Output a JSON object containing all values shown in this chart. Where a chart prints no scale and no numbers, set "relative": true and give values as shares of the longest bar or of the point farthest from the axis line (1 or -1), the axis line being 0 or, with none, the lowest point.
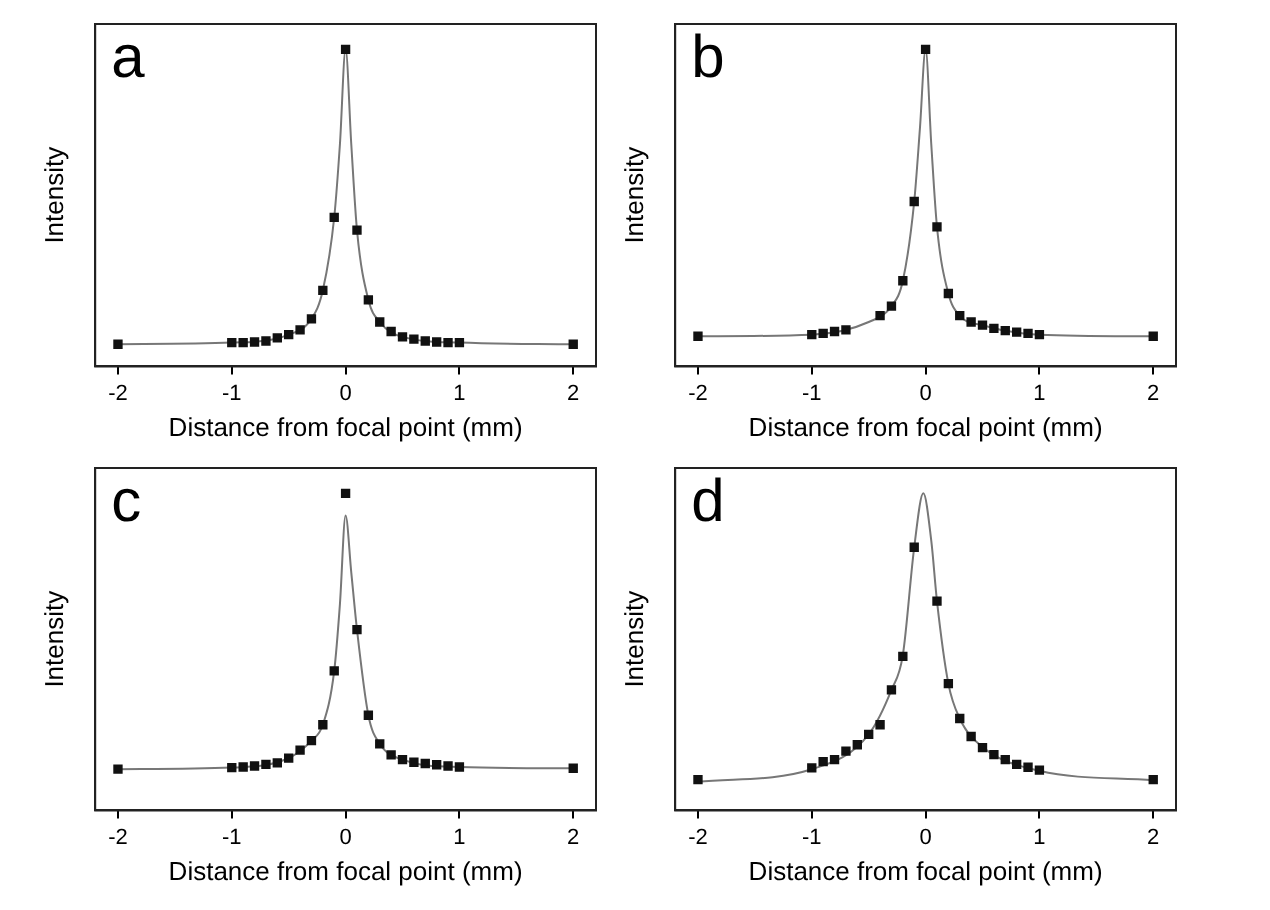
{
  "chart_data": [
    {
      "type": "scatter",
      "title": "a",
      "xlabel": "Distance from focal point (mm)",
      "ylabel": "Intensity",
      "relative": true,
      "xlim": [
        -2.2,
        2.2
      ],
      "xticks": [
        -2,
        -1,
        0,
        1,
        2
      ],
      "grid": false,
      "legend": false,
      "series": [
        {
          "type": "scatter",
          "marker": "square",
          "color": "#111111",
          "x": [
            -2,
            -1,
            -0.9,
            -0.8,
            -0.7,
            -0.6,
            -0.5,
            -0.4,
            -0.3,
            -0.2,
            -0.1,
            0,
            0.1,
            0.2,
            0.3,
            0.4,
            0.5,
            0.6,
            0.7,
            0.8,
            0.9,
            1,
            2
          ],
          "values": [
            0.07,
            0.075,
            0.075,
            0.077,
            0.08,
            0.09,
            0.1,
            0.115,
            0.15,
            0.24,
            0.47,
            1.0,
            0.43,
            0.21,
            0.14,
            0.11,
            0.093,
            0.086,
            0.08,
            0.077,
            0.075,
            0.075,
            0.07
          ]
        },
        {
          "type": "line",
          "marker": "none",
          "color": "#777777",
          "x": [
            -2,
            -1,
            -0.5,
            -0.3,
            -0.2,
            -0.1,
            -0.05,
            0,
            0.05,
            0.1,
            0.2,
            0.3,
            0.5,
            1,
            2
          ],
          "values": [
            0.07,
            0.075,
            0.1,
            0.15,
            0.24,
            0.47,
            0.7,
            1.0,
            0.7,
            0.43,
            0.21,
            0.14,
            0.093,
            0.075,
            0.07
          ]
        }
      ]
    },
    {
      "type": "scatter",
      "title": "b",
      "xlabel": "Distance from focal point (mm)",
      "ylabel": "Intensity",
      "relative": true,
      "xlim": [
        -2.2,
        2.2
      ],
      "xticks": [
        -2,
        -1,
        0,
        1,
        2
      ],
      "grid": false,
      "legend": false,
      "series": [
        {
          "type": "scatter",
          "marker": "square",
          "color": "#111111",
          "x": [
            -2,
            -1,
            -0.9,
            -0.8,
            -0.7,
            -0.4,
            -0.3,
            -0.2,
            -0.1,
            0,
            0.1,
            0.2,
            0.3,
            0.4,
            0.5,
            0.6,
            0.7,
            0.8,
            0.9,
            1,
            2
          ],
          "values": [
            0.095,
            0.1,
            0.104,
            0.11,
            0.115,
            0.16,
            0.19,
            0.27,
            0.52,
            1.0,
            0.44,
            0.23,
            0.16,
            0.14,
            0.13,
            0.12,
            0.113,
            0.108,
            0.104,
            0.1,
            0.095
          ]
        },
        {
          "type": "line",
          "marker": "none",
          "color": "#777777",
          "x": [
            -2,
            -1,
            -0.5,
            -0.3,
            -0.2,
            -0.1,
            -0.05,
            0,
            0.05,
            0.1,
            0.2,
            0.3,
            0.5,
            1,
            2
          ],
          "values": [
            0.095,
            0.1,
            0.14,
            0.19,
            0.27,
            0.52,
            0.75,
            1.0,
            0.7,
            0.44,
            0.23,
            0.16,
            0.13,
            0.1,
            0.095
          ]
        }
      ]
    },
    {
      "type": "scatter",
      "title": "c",
      "xlabel": "Distance from focal point (mm)",
      "ylabel": "Intensity",
      "relative": true,
      "xlim": [
        -2.2,
        2.2
      ],
      "xticks": [
        -2,
        -1,
        0,
        1,
        2
      ],
      "grid": false,
      "legend": false,
      "series": [
        {
          "type": "scatter",
          "marker": "square",
          "color": "#111111",
          "x": [
            -2,
            -1,
            -0.9,
            -0.8,
            -0.7,
            -0.6,
            -0.5,
            -0.4,
            -0.3,
            -0.2,
            -0.1,
            0,
            0.1,
            0.2,
            0.3,
            0.4,
            0.5,
            0.6,
            0.7,
            0.8,
            0.9,
            1,
            2
          ],
          "values": [
            0.13,
            0.135,
            0.137,
            0.14,
            0.145,
            0.15,
            0.165,
            0.19,
            0.22,
            0.27,
            0.44,
            1.0,
            0.57,
            0.3,
            0.21,
            0.175,
            0.16,
            0.152,
            0.148,
            0.144,
            0.14,
            0.137,
            0.133
          ]
        },
        {
          "type": "line",
          "marker": "none",
          "color": "#777777",
          "x": [
            -2,
            -1,
            -0.5,
            -0.3,
            -0.2,
            -0.1,
            -0.05,
            0,
            0.05,
            0.1,
            0.2,
            0.3,
            0.5,
            1,
            2
          ],
          "values": [
            0.13,
            0.135,
            0.165,
            0.22,
            0.27,
            0.44,
            0.65,
            0.93,
            0.75,
            0.57,
            0.3,
            0.21,
            0.16,
            0.137,
            0.133
          ]
        }
      ]
    },
    {
      "type": "scatter",
      "title": "d",
      "xlabel": "Distance from focal point (mm)",
      "ylabel": "Intensity",
      "relative": true,
      "xlim": [
        -2.2,
        2.2
      ],
      "xticks": [
        -2,
        -1,
        0,
        1,
        2
      ],
      "grid": false,
      "legend": false,
      "series": [
        {
          "type": "scatter",
          "marker": "square",
          "color": "#111111",
          "x": [
            -2,
            -1,
            -0.9,
            -0.8,
            -0.7,
            -0.6,
            -0.5,
            -0.4,
            -0.3,
            -0.2,
            -0.1,
            0.1,
            0.2,
            0.3,
            0.4,
            0.5,
            0.6,
            0.7,
            0.8,
            0.9,
            1,
            2
          ],
          "values": [
            0.097,
            0.134,
            0.154,
            0.16,
            0.187,
            0.207,
            0.24,
            0.27,
            0.38,
            0.486,
            0.83,
            0.66,
            0.4,
            0.29,
            0.233,
            0.198,
            0.176,
            0.16,
            0.145,
            0.136,
            0.127,
            0.097
          ]
        },
        {
          "type": "line",
          "marker": "none",
          "color": "#777777",
          "x": [
            -2,
            -1,
            -0.5,
            -0.3,
            -0.2,
            -0.1,
            -0.02,
            0.05,
            0.1,
            0.2,
            0.3,
            0.5,
            1,
            2
          ],
          "values": [
            0.09,
            0.13,
            0.24,
            0.38,
            0.49,
            0.83,
            1.0,
            0.85,
            0.66,
            0.4,
            0.29,
            0.2,
            0.125,
            0.095
          ]
        }
      ]
    }
  ]
}
